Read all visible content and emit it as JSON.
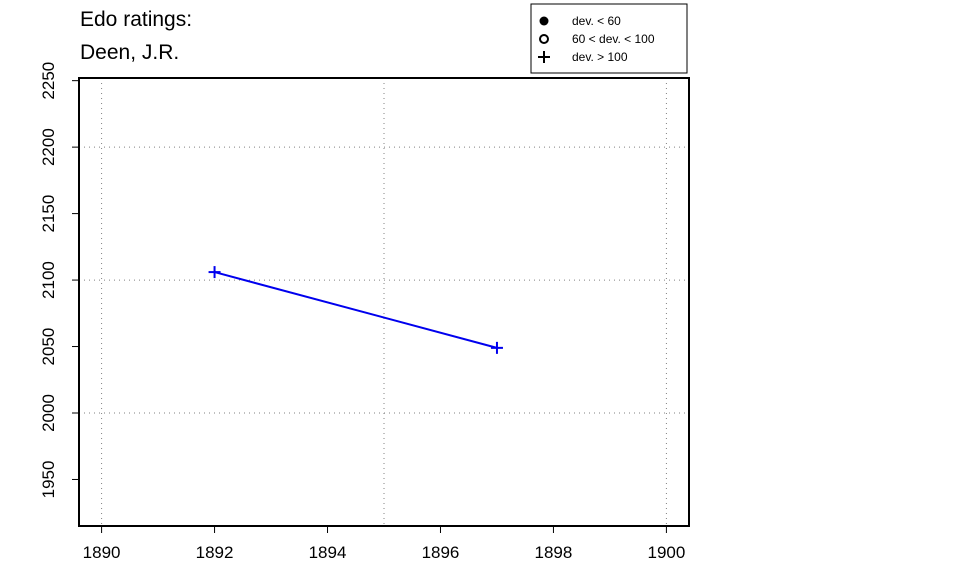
{
  "chart_data": {
    "type": "line",
    "title": [
      "Edo ratings:",
      "Deen, J.R."
    ],
    "xlabel": "",
    "ylabel": "",
    "xlim": [
      1889.6,
      1900.4
    ],
    "ylim": [
      1915,
      2252
    ],
    "x_ticks": [
      1890,
      1892,
      1894,
      1896,
      1898,
      1900
    ],
    "y_ticks": [
      1950,
      2000,
      2050,
      2100,
      2150,
      2200,
      2250
    ],
    "grid_x": [
      1890,
      1895,
      1900
    ],
    "grid_y": [
      2000,
      2100,
      2200
    ],
    "grid": true,
    "series": [
      {
        "color": "#0000ee",
        "points": [
          {
            "x": 1892,
            "y": 2106,
            "marker": "plus"
          },
          {
            "x": 1897,
            "y": 2049,
            "marker": "plus"
          }
        ]
      }
    ],
    "legend": {
      "position": "top-right",
      "entries": [
        {
          "marker": "filled-circle",
          "label": "dev. < 60"
        },
        {
          "marker": "open-circle",
          "label": "60 < dev. < 100"
        },
        {
          "marker": "plus",
          "label": "dev. > 100"
        }
      ]
    }
  }
}
